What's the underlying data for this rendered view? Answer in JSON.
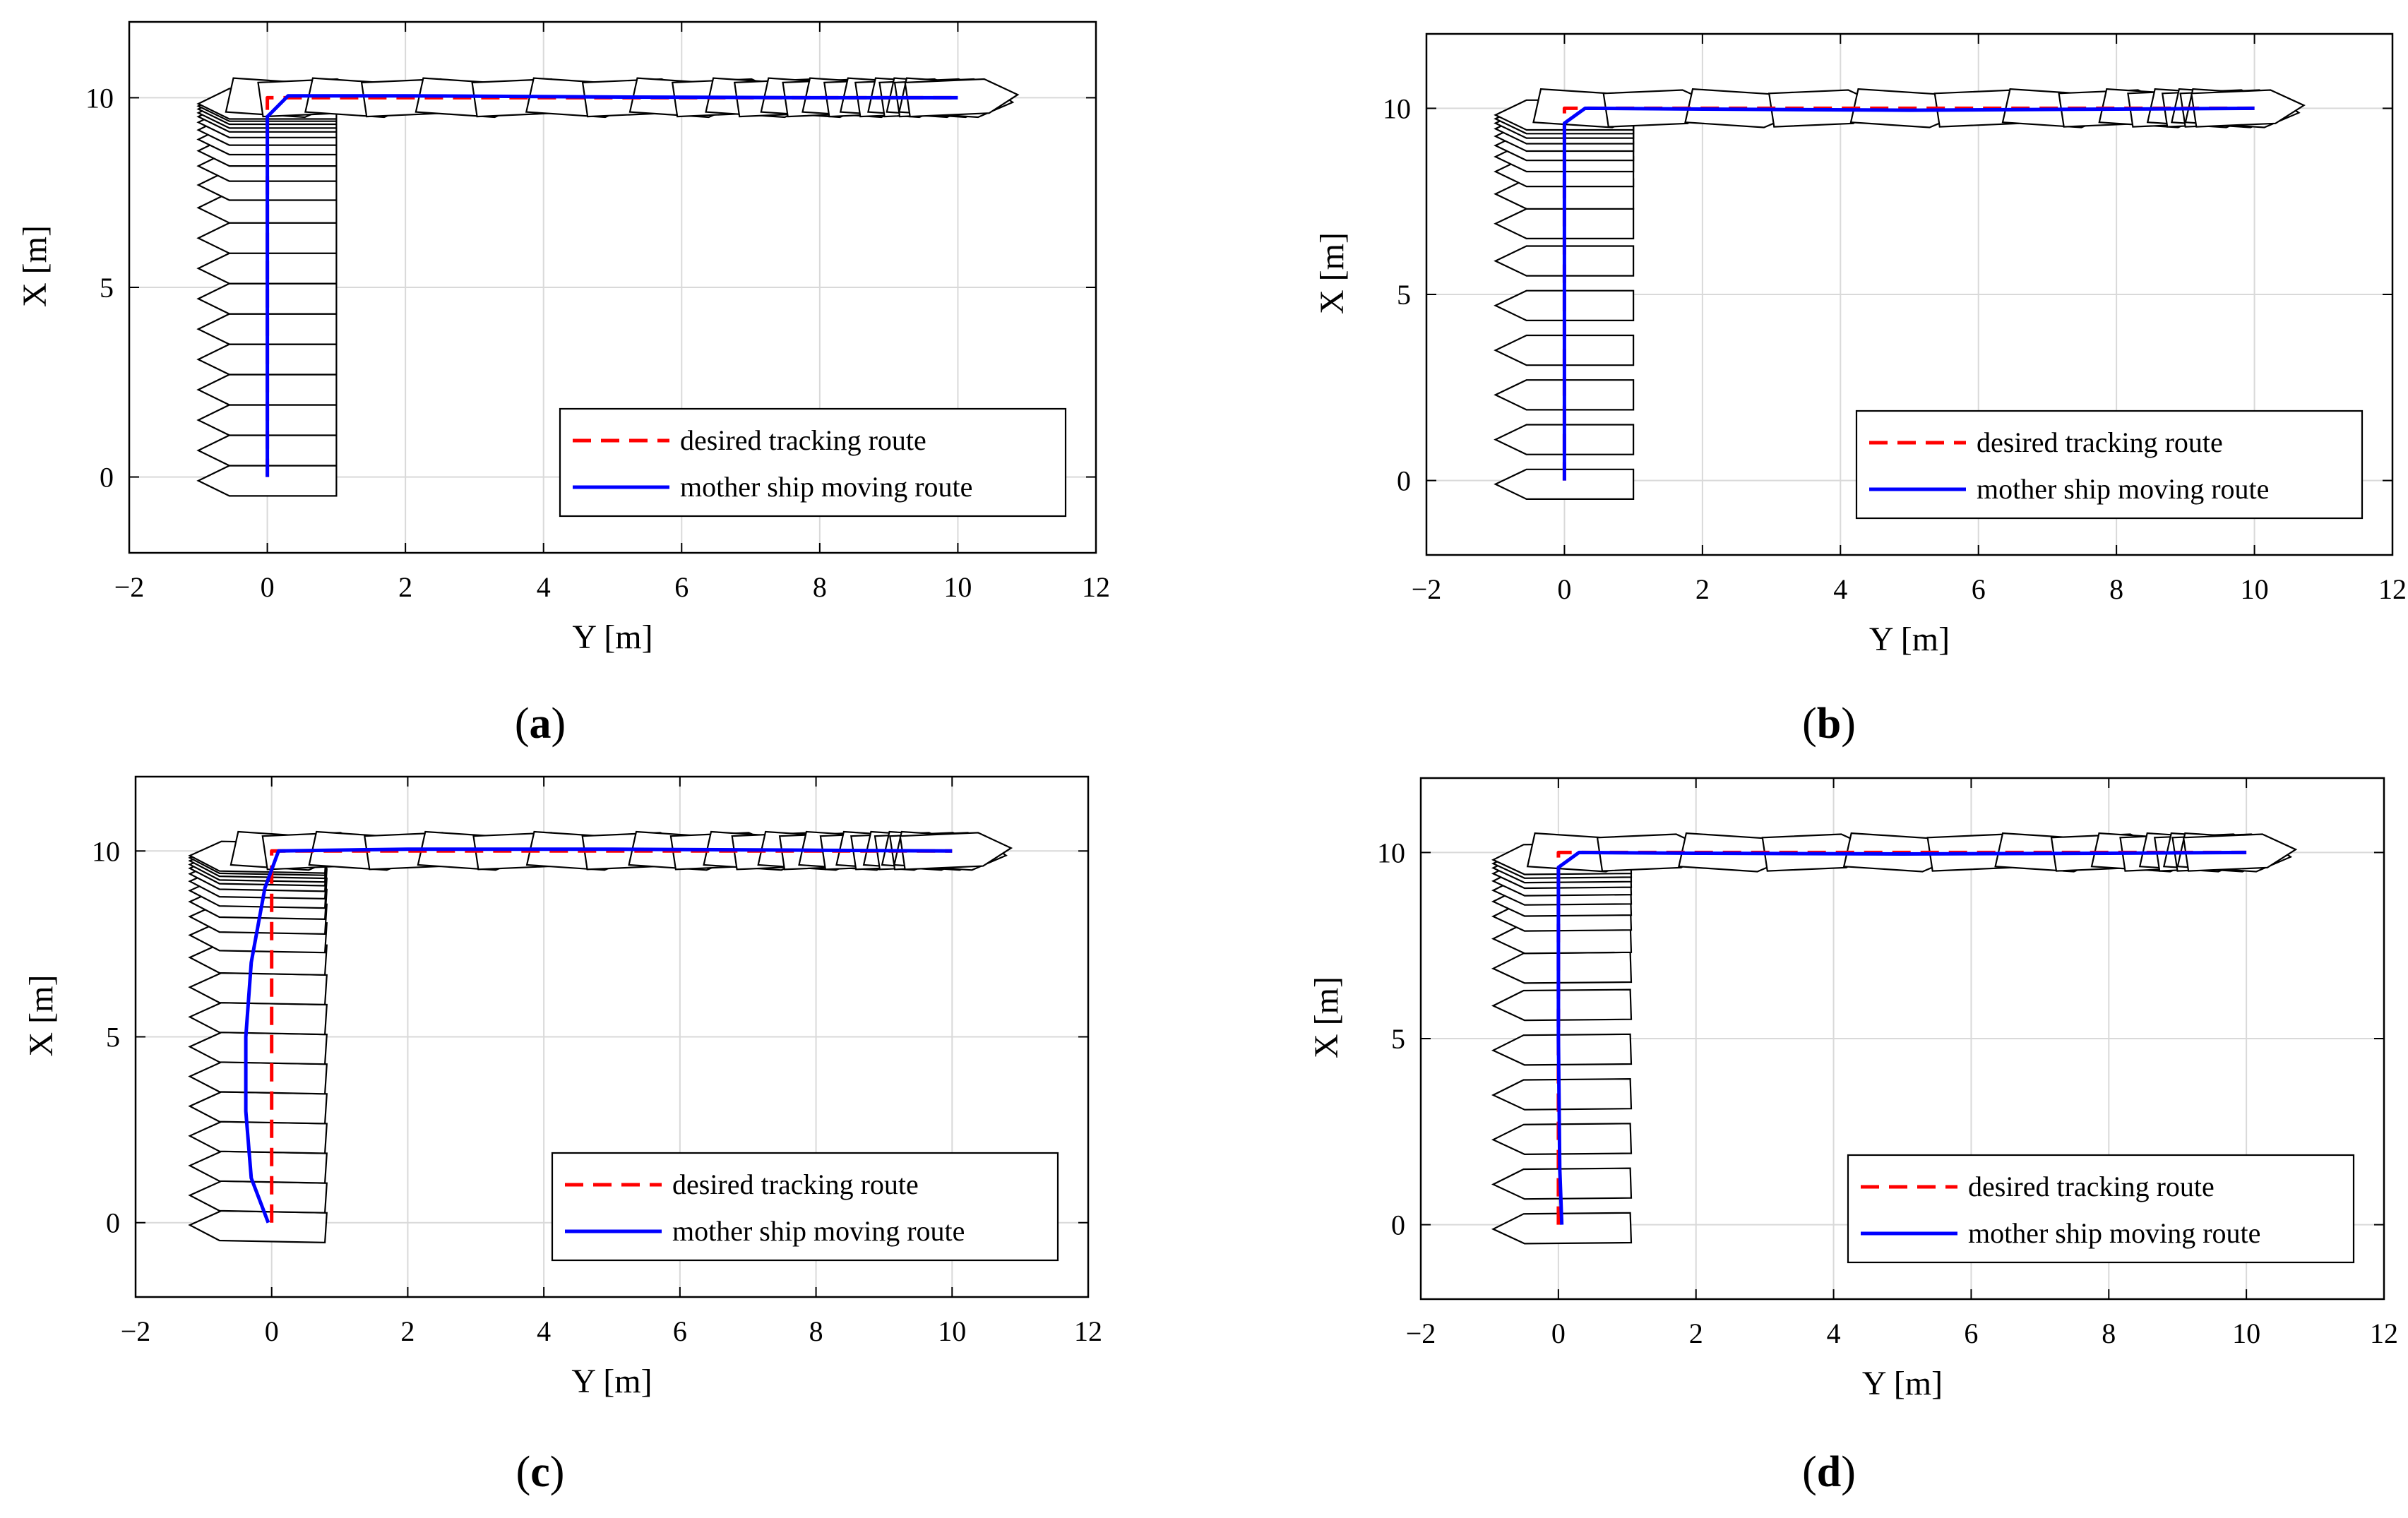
{
  "colors": {
    "desired": "#ff0000",
    "actual": "#0000ff",
    "grid": "#d9d9d9",
    "hull": "#000000"
  },
  "chart_data": [
    {
      "type": "line",
      "panel_label": "a",
      "xlabel": "Y [m]",
      "ylabel": "X [m]",
      "xlim": [
        -2,
        12
      ],
      "ylim": [
        -2,
        12
      ],
      "xticks": [
        "−2",
        "0",
        "2",
        "4",
        "6",
        "8",
        "10",
        "12"
      ],
      "yticks": [
        "0",
        "5",
        "10"
      ],
      "grid": true,
      "legend": {
        "position": "bottom-right",
        "entries": [
          "desired tracking route",
          "mother ship moving route"
        ]
      },
      "series": [
        {
          "name": "desired tracking route",
          "style": "dashed",
          "color": "#ff0000",
          "y": [
            0,
            0,
            10
          ],
          "x": [
            0,
            10,
            10
          ]
        },
        {
          "name": "mother ship moving route",
          "style": "solid",
          "color": "#0000ff",
          "y": [
            0,
            0,
            0,
            0,
            0.3,
            2,
            5,
            8,
            10
          ],
          "x": [
            0,
            3,
            6,
            9.5,
            10.05,
            10.05,
            10.02,
            10.0,
            10.0
          ]
        }
      ],
      "ship_poses": {
        "leg1": {
          "y": 0,
          "angle_deg": 0,
          "x_values": [
            0,
            0.8,
            1.6,
            2.4,
            3.2,
            4.0,
            4.8,
            5.6,
            6.4,
            7.2,
            7.8,
            8.3,
            8.7,
            9.0,
            9.25,
            9.45,
            9.6,
            9.7,
            9.8,
            9.88,
            9.94
          ]
        },
        "leg2": {
          "x": 10,
          "angle_deg": -90,
          "y_values": [
            0.05,
            0.5,
            1.2,
            2.0,
            2.8,
            3.6,
            4.4,
            5.2,
            5.9,
            6.5,
            7.0,
            7.4,
            7.8,
            8.1,
            8.4,
            8.7,
            8.95,
            9.15,
            9.35,
            9.5,
            9.62,
            9.72,
            9.8,
            9.87
          ]
        }
      }
    },
    {
      "type": "line",
      "panel_label": "b",
      "xlabel": "Y [m]",
      "ylabel": "X [m]",
      "xlim": [
        -2,
        12
      ],
      "ylim": [
        -2,
        12
      ],
      "xticks": [
        "−2",
        "0",
        "2",
        "4",
        "6",
        "8",
        "10",
        "12"
      ],
      "yticks": [
        "0",
        "5",
        "10"
      ],
      "grid": true,
      "legend": {
        "position": "bottom-right",
        "entries": [
          "desired tracking route",
          "mother ship moving route"
        ]
      },
      "series": [
        {
          "name": "desired tracking route",
          "style": "dashed",
          "color": "#ff0000",
          "y": [
            0,
            0,
            10
          ],
          "x": [
            0,
            10,
            10
          ]
        },
        {
          "name": "mother ship moving route",
          "style": "solid",
          "color": "#0000ff",
          "y": [
            0,
            0,
            0,
            0.3,
            2,
            5,
            8,
            10
          ],
          "x": [
            0,
            5,
            9.6,
            10.0,
            9.98,
            9.95,
            9.98,
            10.0
          ]
        }
      ],
      "ship_poses": {
        "leg1": {
          "y": 0,
          "angle_deg": 0,
          "x_values": [
            0,
            1.2,
            2.4,
            3.6,
            4.8,
            6.0,
            7.0,
            7.8,
            8.4,
            8.8,
            9.1,
            9.35,
            9.55,
            9.7,
            9.82,
            9.92
          ]
        },
        "leg2": {
          "x": 10,
          "angle_deg": -90,
          "y_values": [
            0.2,
            1.2,
            2.4,
            3.6,
            4.8,
            6.0,
            7.0,
            7.8,
            8.4,
            8.8,
            9.1,
            9.3,
            9.45,
            9.56,
            9.65,
            9.72
          ]
        }
      }
    },
    {
      "type": "line",
      "panel_label": "c",
      "xlabel": "Y [m]",
      "ylabel": "X [m]",
      "xlim": [
        -2,
        12
      ],
      "ylim": [
        -2,
        12
      ],
      "xticks": [
        "−2",
        "0",
        "2",
        "4",
        "6",
        "8",
        "10",
        "12"
      ],
      "yticks": [
        "0",
        "5",
        "10"
      ],
      "grid": true,
      "legend": {
        "position": "bottom-right",
        "entries": [
          "desired tracking route",
          "mother ship moving route"
        ]
      },
      "series": [
        {
          "name": "desired tracking route",
          "style": "dashed",
          "color": "#ff0000",
          "y": [
            0,
            0,
            10
          ],
          "x": [
            0,
            10,
            10
          ]
        },
        {
          "name": "mother ship moving route",
          "style": "solid",
          "color": "#0000ff",
          "y": [
            -0.05,
            -0.3,
            -0.38,
            -0.38,
            -0.3,
            -0.1,
            0.1,
            2,
            5,
            8,
            10
          ],
          "x": [
            0,
            1.2,
            3,
            5,
            7,
            9,
            10,
            10.05,
            10.05,
            10.02,
            10.0
          ]
        }
      ],
      "ship_poses": {
        "leg1": {
          "y": -0.2,
          "angle_deg": 2,
          "x_values": [
            0,
            0.8,
            1.6,
            2.4,
            3.2,
            4.0,
            4.8,
            5.6,
            6.4,
            7.2,
            7.8,
            8.3,
            8.7,
            9.0,
            9.25,
            9.45,
            9.6,
            9.7,
            9.8,
            9.88,
            9.94
          ]
        },
        "leg2": {
          "x": 10,
          "angle_deg": -90,
          "y_values": [
            0.05,
            0.5,
            1.2,
            2.0,
            2.8,
            3.6,
            4.4,
            5.2,
            5.9,
            6.5,
            7.0,
            7.4,
            7.8,
            8.1,
            8.4,
            8.7,
            8.95,
            9.15,
            9.35,
            9.5,
            9.62,
            9.72,
            9.8,
            9.87
          ]
        }
      }
    },
    {
      "type": "line",
      "panel_label": "d",
      "xlabel": "Y [m]",
      "ylabel": "X [m]",
      "xlim": [
        -2,
        12
      ],
      "ylim": [
        -2,
        12
      ],
      "xticks": [
        "−2",
        "0",
        "2",
        "4",
        "6",
        "8",
        "10",
        "12"
      ],
      "yticks": [
        "0",
        "5",
        "10"
      ],
      "grid": true,
      "legend": {
        "position": "bottom-right",
        "entries": [
          "desired tracking route",
          "mother ship moving route"
        ]
      },
      "series": [
        {
          "name": "desired tracking route",
          "style": "dashed",
          "color": "#ff0000",
          "y": [
            0,
            0,
            10
          ],
          "x": [
            0,
            10,
            10
          ]
        },
        {
          "name": "mother ship moving route",
          "style": "solid",
          "color": "#0000ff",
          "y": [
            0.05,
            0.02,
            0.0,
            0.0,
            0.3,
            2,
            5,
            8,
            10
          ],
          "x": [
            0,
            1.5,
            5,
            9.6,
            10.0,
            9.98,
            9.96,
            9.98,
            10.0
          ]
        }
      ],
      "ship_poses": {
        "leg1": {
          "y": 0.05,
          "angle_deg": -1,
          "x_values": [
            0,
            1.2,
            2.4,
            3.6,
            4.8,
            6.0,
            7.0,
            7.8,
            8.4,
            8.8,
            9.1,
            9.35,
            9.55,
            9.7,
            9.82,
            9.92
          ]
        },
        "leg2": {
          "x": 10,
          "angle_deg": -90,
          "y_values": [
            0.2,
            1.2,
            2.4,
            3.6,
            4.8,
            6.0,
            7.0,
            7.8,
            8.4,
            8.8,
            9.1,
            9.3,
            9.45,
            9.56,
            9.65,
            9.72
          ]
        }
      }
    }
  ]
}
